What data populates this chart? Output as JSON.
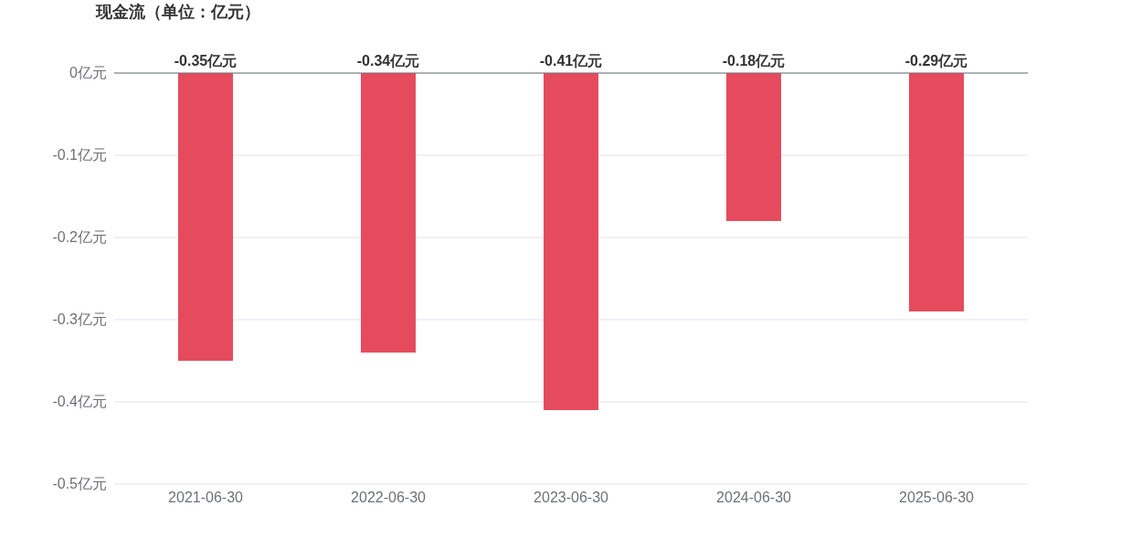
{
  "chart_data": {
    "type": "bar",
    "title": "现金流（单位：亿元）",
    "categories": [
      "2021-06-30",
      "2022-06-30",
      "2023-06-30",
      "2024-06-30",
      "2025-06-30"
    ],
    "values": [
      -0.35,
      -0.34,
      -0.41,
      -0.18,
      -0.29
    ],
    "value_labels": [
      "-0.35亿元",
      "-0.34亿元",
      "-0.41亿元",
      "-0.18亿元",
      "-0.29亿元"
    ],
    "color": "#e64b5d",
    "ylim": [
      -0.5,
      0
    ],
    "yticks": [
      {
        "value": 0,
        "label": "0亿元"
      },
      {
        "value": -0.1,
        "label": "-0.1亿元"
      },
      {
        "value": -0.2,
        "label": "-0.2亿元"
      },
      {
        "value": -0.3,
        "label": "-0.3亿元"
      },
      {
        "value": -0.4,
        "label": "-0.4亿元"
      },
      {
        "value": -0.5,
        "label": "-0.5亿元"
      }
    ],
    "grid": "y"
  }
}
